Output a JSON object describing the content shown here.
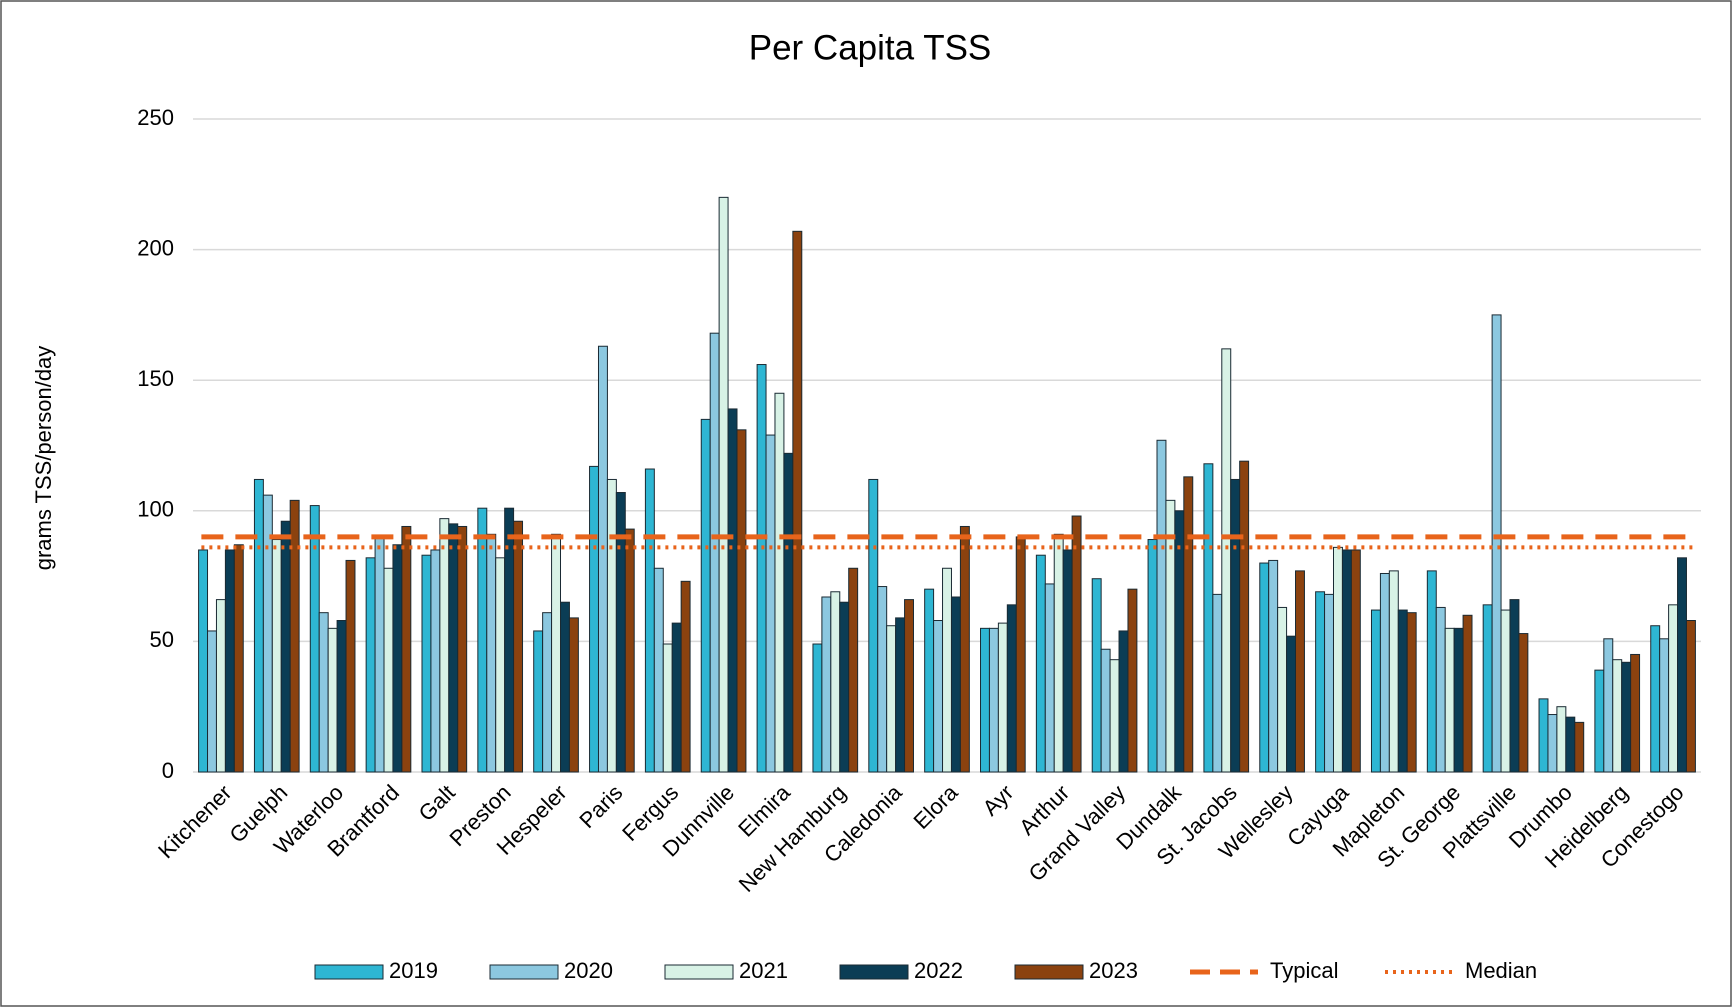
{
  "chart_data": {
    "type": "bar",
    "title": "Per Capita TSS",
    "y_label": "grams TSS/person/day",
    "categories": [
      "Kitchener",
      "Guelph",
      "Waterloo",
      "Brantford",
      "Galt",
      "Preston",
      "Hespeler",
      "Paris",
      "Fergus",
      "Dunnville",
      "Elmira",
      "New Hamburg",
      "Caledonia",
      "Elora",
      "Ayr",
      "Arthur",
      "Grand Valley",
      "Dundalk",
      "St. Jacobs",
      "Wellesley",
      "Cayuga",
      "Mapleton",
      "St. George",
      "Plattsville",
      "Drumbo",
      "Heidelberg",
      "Conestogo"
    ],
    "series": [
      {
        "name": "2019",
        "color": "#2eb6d3",
        "values": [
          85,
          112,
          102,
          82,
          83,
          101,
          54,
          117,
          116,
          135,
          156,
          49,
          112,
          70,
          55,
          83,
          74,
          89,
          118,
          80,
          69,
          62,
          77,
          64,
          28,
          39,
          56
        ]
      },
      {
        "name": "2020",
        "color": "#8cc8e0",
        "values": [
          54,
          106,
          61,
          90,
          85,
          91,
          61,
          163,
          78,
          168,
          129,
          67,
          71,
          58,
          55,
          72,
          47,
          127,
          68,
          81,
          68,
          76,
          63,
          175,
          22,
          51,
          51
        ]
      },
      {
        "name": "2021",
        "color": "#d8f2e6",
        "values": [
          66,
          89,
          55,
          78,
          97,
          82,
          91,
          112,
          49,
          220,
          145,
          69,
          56,
          78,
          57,
          91,
          43,
          104,
          162,
          63,
          86,
          77,
          55,
          62,
          25,
          43,
          64
        ]
      },
      {
        "name": "2022",
        "color": "#0b3d55",
        "values": [
          85,
          96,
          58,
          87,
          95,
          101,
          65,
          107,
          57,
          139,
          122,
          65,
          59,
          67,
          64,
          85,
          54,
          100,
          112,
          52,
          85,
          62,
          55,
          66,
          21,
          42,
          82
        ]
      },
      {
        "name": "2023",
        "color": "#8b420f",
        "values": [
          87,
          104,
          81,
          94,
          94,
          96,
          59,
          93,
          73,
          131,
          207,
          78,
          66,
          94,
          90,
          98,
          70,
          113,
          119,
          77,
          85,
          61,
          60,
          53,
          19,
          45,
          58
        ]
      }
    ],
    "lines": [
      {
        "name": "Typical",
        "value": 90,
        "color": "#e8641b",
        "style": "dashed"
      },
      {
        "name": "Median",
        "value": 86,
        "color": "#e8641b",
        "style": "dotted"
      }
    ],
    "ylim": [
      0,
      250
    ],
    "yticks": [
      0,
      50,
      100,
      150,
      200,
      250
    ],
    "grid": true,
    "legend": "bottom"
  }
}
